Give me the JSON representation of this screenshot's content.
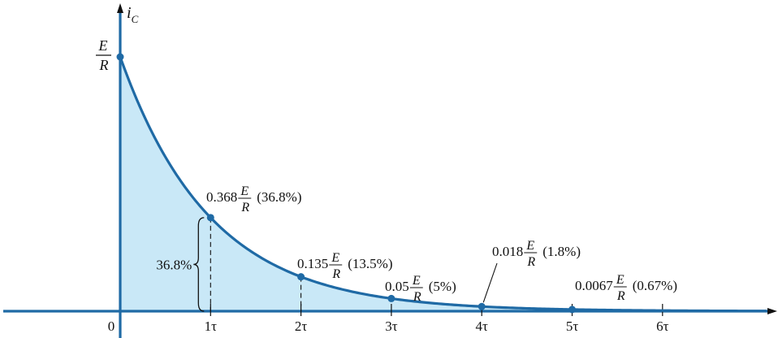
{
  "chart_data": {
    "type": "area",
    "title": "",
    "ylabel_main": "i",
    "ylabel_sub": "C",
    "origin_label": "0",
    "x_unit": "τ",
    "x_ticks": [
      "1τ",
      "2τ",
      "3τ",
      "4τ",
      "5τ",
      "6τ"
    ],
    "xlim": [
      0,
      7
    ],
    "y_max_label": {
      "num": "E",
      "den": "R"
    },
    "x": [
      0,
      1,
      2,
      3,
      4,
      5
    ],
    "values": [
      1,
      0.368,
      0.135,
      0.05,
      0.018,
      0.0067
    ],
    "points": [
      {
        "x": 0,
        "coef": "",
        "pct": ""
      },
      {
        "x": 1,
        "coef": "0.368",
        "pct": "(36.8%)"
      },
      {
        "x": 2,
        "coef": "0.135",
        "pct": "(13.5%)"
      },
      {
        "x": 3,
        "coef": "0.05",
        "pct": "(5%)"
      },
      {
        "x": 4,
        "coef": "0.018",
        "pct": "(1.8%)"
      },
      {
        "x": 5,
        "coef": "0.0067",
        "pct": "(0.67%)"
      }
    ],
    "brace_label": "36.8%",
    "colors": {
      "curve": "#1f6aa5",
      "fill": "#c9e8f7",
      "axis": "#1f6aa5",
      "text": "#111111"
    }
  }
}
